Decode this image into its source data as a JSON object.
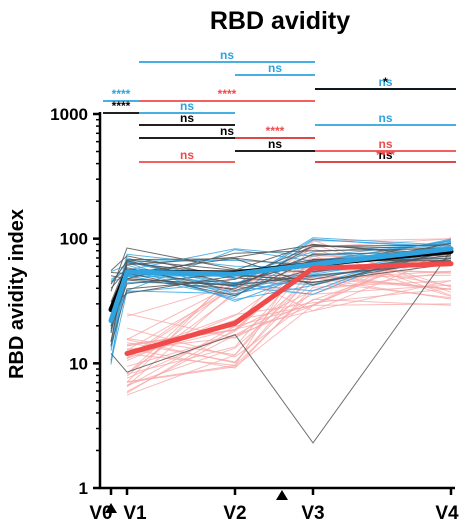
{
  "chart_data": {
    "type": "line",
    "title": "RBD avidity",
    "xlabel": "",
    "ylabel": "RBD avidity index",
    "y_scale": "log",
    "ylim": [
      1,
      1000
    ],
    "y_ticks": [
      1,
      10,
      100,
      1000
    ],
    "y_tick_labels": [
      "1",
      "10",
      "100",
      "1000"
    ],
    "categories": [
      "V0",
      "V1",
      "V2",
      "V3",
      "V4"
    ],
    "grid": false,
    "legend": "none",
    "x_markers": [
      "triangle-up",
      "triangle-up"
    ],
    "colors": {
      "black": "#000000",
      "blue": "#2ea3e0",
      "red": "#f04a4a",
      "light_red": "#f7a6a6",
      "gray": "#555555"
    },
    "series": [
      {
        "color": "black",
        "values": [
          27,
          54,
          53,
          62,
          79
        ]
      },
      {
        "color": "blue",
        "values": [
          22,
          54,
          52,
          62,
          83
        ]
      },
      {
        "color": "red",
        "values": [
          null,
          12,
          21,
          58,
          63
        ]
      }
    ],
    "annotations": [
      {
        "color": "blue",
        "text": "ns",
        "from": "V1",
        "to": "V3"
      },
      {
        "color": "blue",
        "text": "ns",
        "from": "V2",
        "to": "V3"
      },
      {
        "color": "blue",
        "text": "ns",
        "from": "V3",
        "to": "V4"
      },
      {
        "color": "blue",
        "text": "****",
        "from": "V0",
        "to": "V1"
      },
      {
        "color": "blue",
        "text": "ns",
        "from": "V1",
        "to": "V2"
      },
      {
        "color": "blue",
        "text": "ns",
        "from": "V3",
        "to": "V4"
      },
      {
        "color": "black",
        "text": "ns",
        "from": "V1",
        "to": "V3"
      },
      {
        "color": "black",
        "text": "ns",
        "from": "V2",
        "to": "V3"
      },
      {
        "color": "black",
        "text": "ns",
        "from": "V3",
        "to": "V4"
      },
      {
        "color": "black",
        "text": "****",
        "from": "V0",
        "to": "V1"
      },
      {
        "color": "black",
        "text": "ns",
        "from": "V1",
        "to": "V2"
      },
      {
        "color": "black",
        "text": "*",
        "from": "V3",
        "to": "V4"
      },
      {
        "color": "red",
        "text": "****",
        "from": "V1",
        "to": "V3"
      },
      {
        "color": "red",
        "text": "ns",
        "from": "V3",
        "to": "V4"
      },
      {
        "color": "red",
        "text": "****",
        "from": "V2",
        "to": "V3"
      },
      {
        "color": "red",
        "text": "ns",
        "from": "V1",
        "to": "V2"
      },
      {
        "color": "red",
        "text": "****",
        "from": "V3",
        "to": "V4"
      }
    ]
  }
}
